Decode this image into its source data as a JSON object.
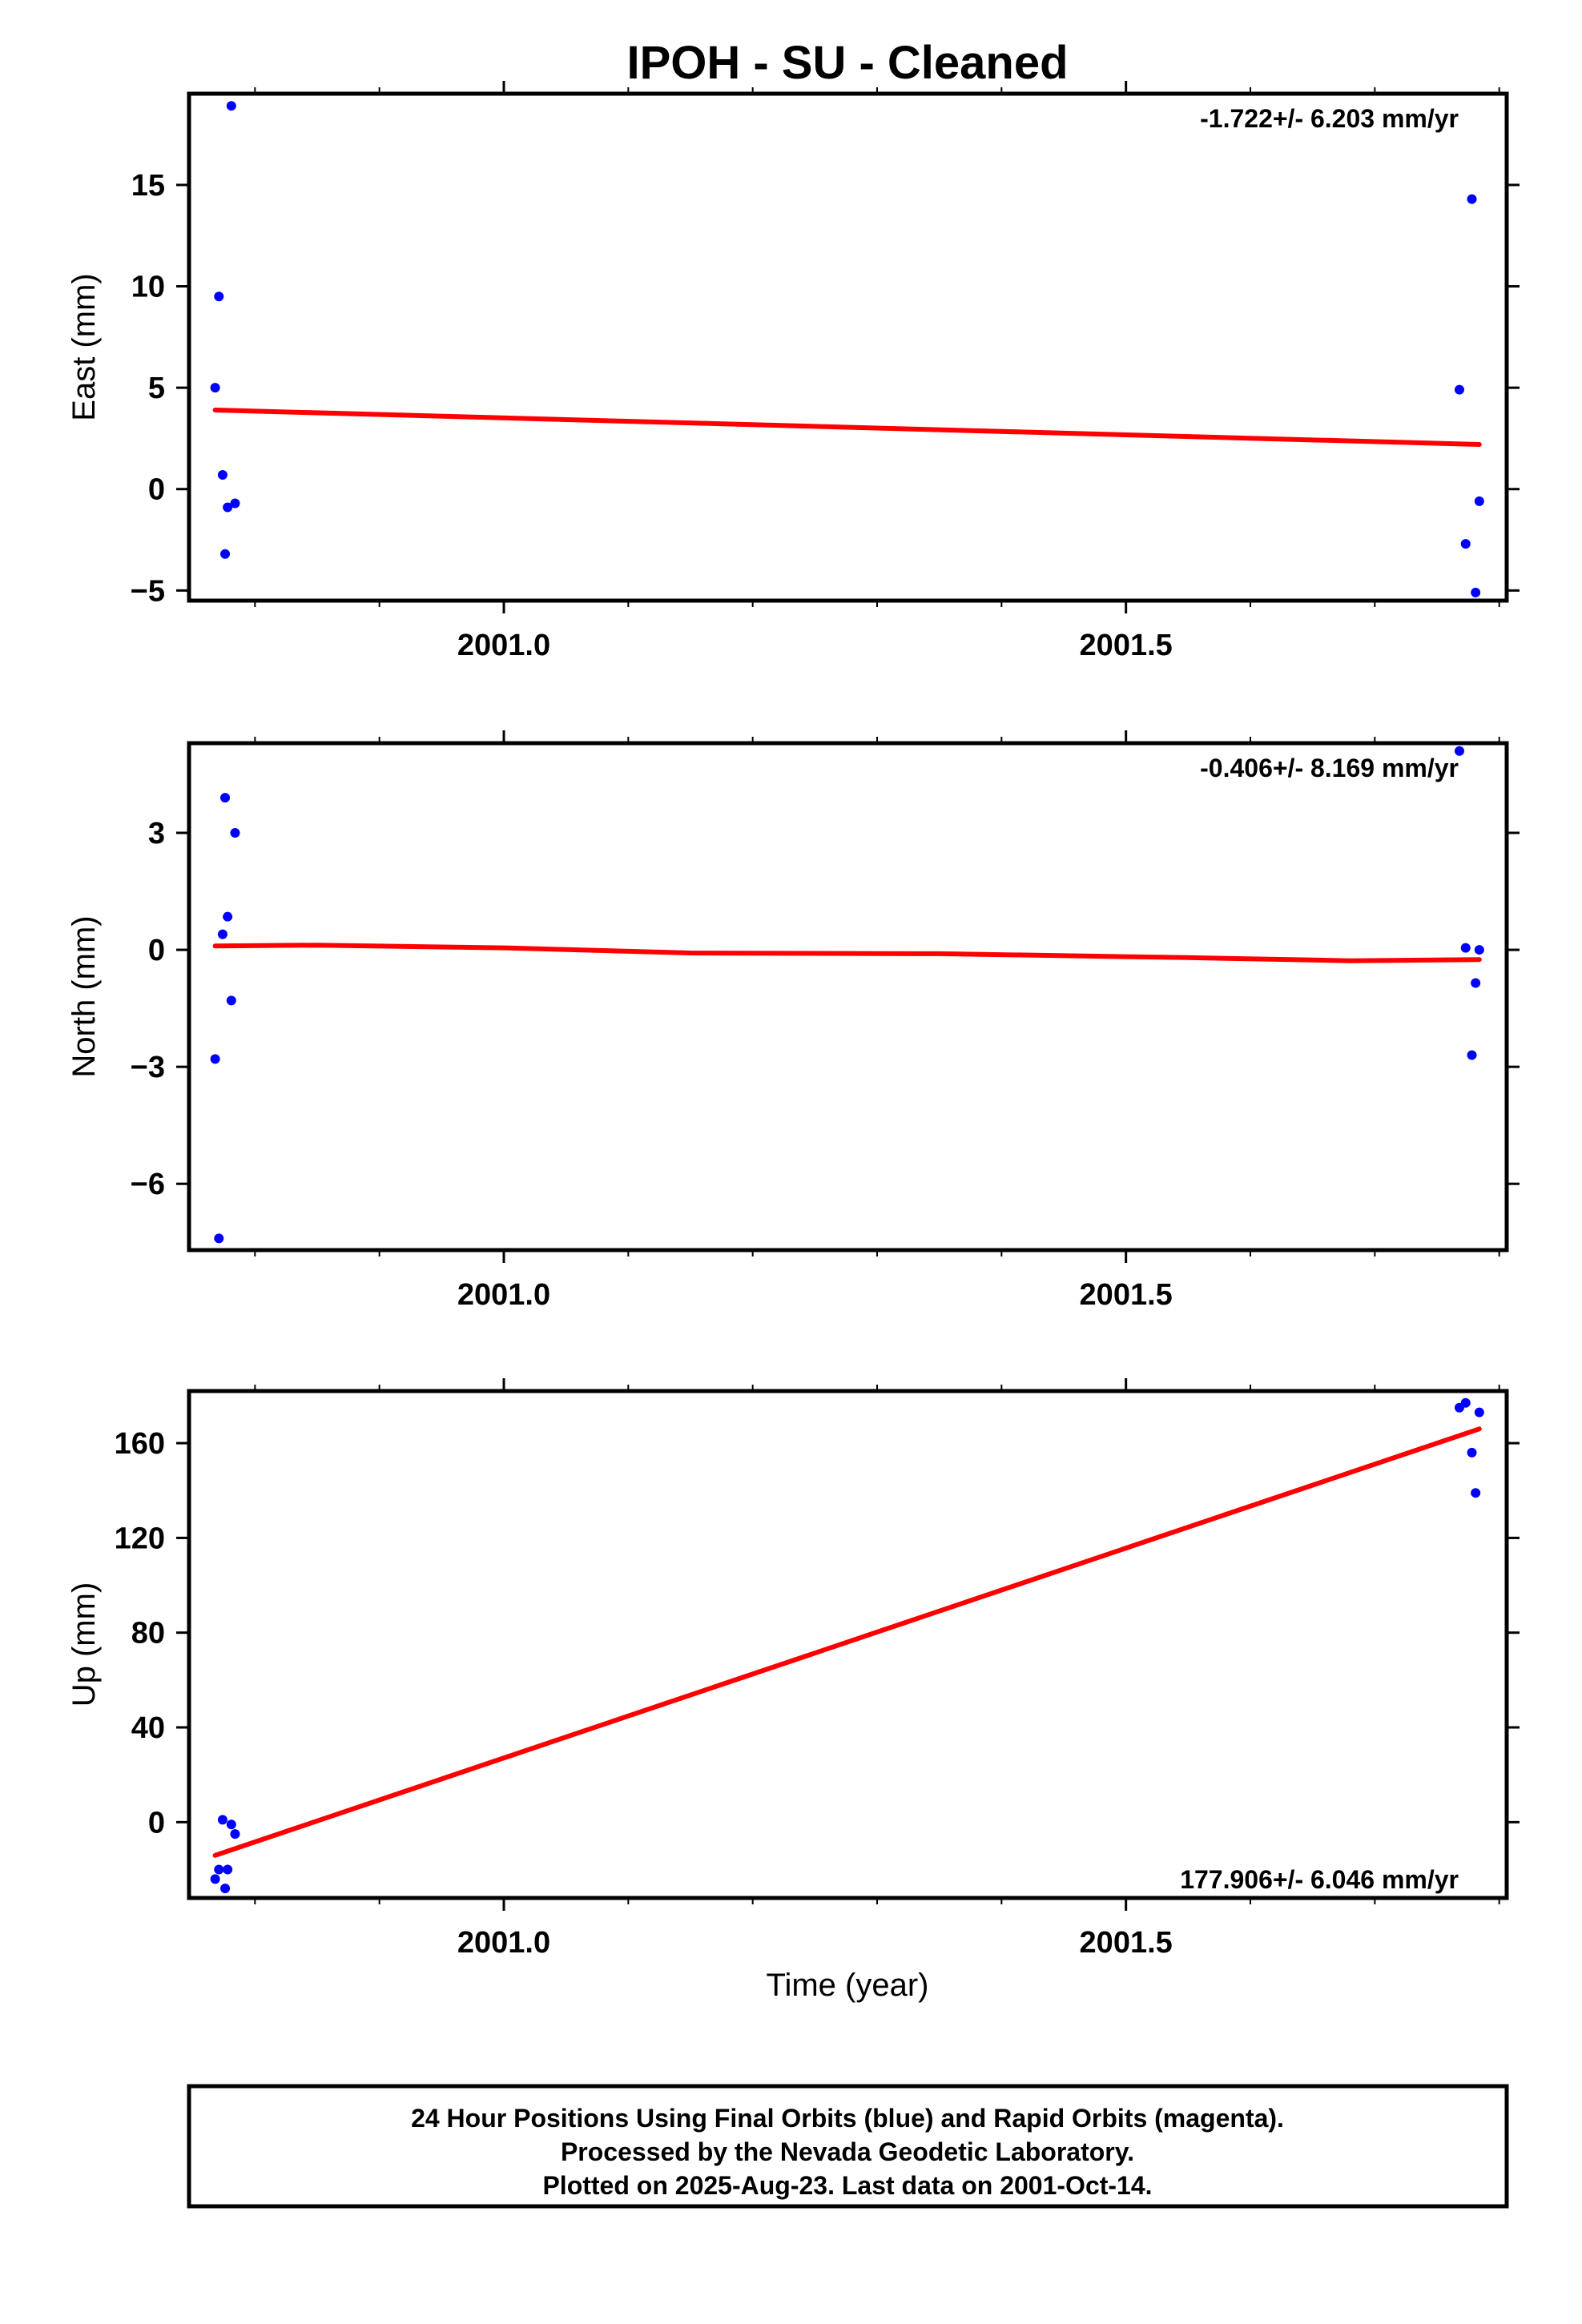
{
  "title": "IPOH  - SU - Cleaned",
  "x_axis_label": "Time (year)",
  "colors": {
    "final_orbits": "#0000ff",
    "rapid_orbits": "#ff00ff",
    "trend": "#ff0000",
    "frame": "#000000"
  },
  "chart_data": [
    {
      "type": "scatter",
      "name": "east",
      "ylabel": "East (mm)",
      "rate_text": "-1.722+/- 6.203 mm/yr",
      "rate_position": "top-right",
      "xlim": [
        2000.747,
        2001.806
      ],
      "ylim": [
        -5.5,
        19.5
      ],
      "x_ticks": [
        2001.0,
        2001.5
      ],
      "x_tick_labels": [
        "2001.0",
        "2001.5"
      ],
      "y_ticks": [
        -5,
        0,
        5,
        10,
        15
      ],
      "y_tick_labels": [
        "−5",
        "0",
        "5",
        "10",
        "15"
      ],
      "points": [
        {
          "x": 2000.768,
          "y": 5.0
        },
        {
          "x": 2000.771,
          "y": 9.5
        },
        {
          "x": 2000.774,
          "y": 0.7
        },
        {
          "x": 2000.776,
          "y": -3.2
        },
        {
          "x": 2000.778,
          "y": -0.9
        },
        {
          "x": 2000.781,
          "y": 18.9
        },
        {
          "x": 2000.784,
          "y": -0.7
        },
        {
          "x": 2001.768,
          "y": 4.9
        },
        {
          "x": 2001.773,
          "y": -2.7
        },
        {
          "x": 2001.778,
          "y": 14.3
        },
        {
          "x": 2001.781,
          "y": -5.1
        },
        {
          "x": 2001.784,
          "y": -0.6
        }
      ],
      "trend": [
        {
          "x": 2000.768,
          "y": 3.9
        },
        {
          "x": 2001.784,
          "y": 2.2
        }
      ]
    },
    {
      "type": "scatter",
      "name": "north",
      "ylabel": "North (mm)",
      "rate_text": "-0.406+/- 8.169 mm/yr",
      "rate_position": "top-right",
      "xlim": [
        2000.747,
        2001.806
      ],
      "ylim": [
        -7.7,
        5.3
      ],
      "x_ticks": [
        2001.0,
        2001.5
      ],
      "x_tick_labels": [
        "2001.0",
        "2001.5"
      ],
      "y_ticks": [
        -6,
        -3,
        0,
        3
      ],
      "y_tick_labels": [
        "−6",
        "−3",
        "0",
        "3"
      ],
      "points": [
        {
          "x": 2000.768,
          "y": -2.8
        },
        {
          "x": 2000.771,
          "y": -7.4
        },
        {
          "x": 2000.774,
          "y": 0.4
        },
        {
          "x": 2000.776,
          "y": 3.9
        },
        {
          "x": 2000.778,
          "y": 0.85
        },
        {
          "x": 2000.781,
          "y": -1.3
        },
        {
          "x": 2000.784,
          "y": 3.0
        },
        {
          "x": 2001.768,
          "y": 5.1
        },
        {
          "x": 2001.773,
          "y": 0.05
        },
        {
          "x": 2001.778,
          "y": -2.7
        },
        {
          "x": 2001.781,
          "y": -0.85
        },
        {
          "x": 2001.784,
          "y": 0.0
        }
      ],
      "trend": [
        {
          "x": 2000.768,
          "y": 0.1
        },
        {
          "x": 2000.85,
          "y": 0.12
        },
        {
          "x": 2001.0,
          "y": 0.05
        },
        {
          "x": 2001.15,
          "y": -0.08
        },
        {
          "x": 2001.35,
          "y": -0.1
        },
        {
          "x": 2001.55,
          "y": -0.2
        },
        {
          "x": 2001.68,
          "y": -0.28
        },
        {
          "x": 2001.784,
          "y": -0.25
        }
      ]
    },
    {
      "type": "scatter",
      "name": "up",
      "ylabel": "Up (mm)",
      "rate_text": "177.906+/- 6.046 mm/yr",
      "rate_position": "bottom-right",
      "xlim": [
        2000.747,
        2001.806
      ],
      "ylim": [
        -32,
        182
      ],
      "x_ticks": [
        2001.0,
        2001.5
      ],
      "x_tick_labels": [
        "2001.0",
        "2001.5"
      ],
      "y_ticks": [
        0,
        40,
        80,
        120,
        160
      ],
      "y_tick_labels": [
        "0",
        "40",
        "80",
        "120",
        "160"
      ],
      "points": [
        {
          "x": 2000.768,
          "y": -24
        },
        {
          "x": 2000.771,
          "y": -20
        },
        {
          "x": 2000.774,
          "y": 1
        },
        {
          "x": 2000.776,
          "y": -28
        },
        {
          "x": 2000.778,
          "y": -20
        },
        {
          "x": 2000.781,
          "y": -1
        },
        {
          "x": 2000.784,
          "y": -5
        },
        {
          "x": 2001.768,
          "y": 175
        },
        {
          "x": 2001.773,
          "y": 177
        },
        {
          "x": 2001.778,
          "y": 156
        },
        {
          "x": 2001.781,
          "y": 139
        },
        {
          "x": 2001.784,
          "y": 173
        }
      ],
      "trend": [
        {
          "x": 2000.768,
          "y": -14
        },
        {
          "x": 2001.784,
          "y": 166
        }
      ]
    }
  ],
  "footer": {
    "line1": "24 Hour Positions Using Final Orbits (blue) and Rapid Orbits (magenta).",
    "line2": "Processed by the Nevada Geodetic Laboratory.",
    "line3": "Plotted on 2025-Aug-23. Last data on 2001-Oct-14."
  }
}
